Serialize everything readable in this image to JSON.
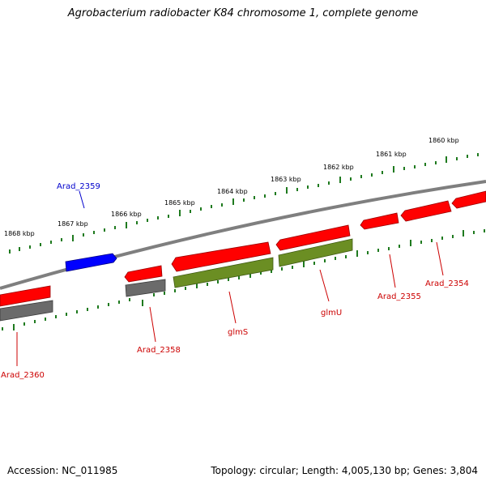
{
  "title": "Agrobacterium radiobacter K84 chromosome 1, complete genome",
  "footer": {
    "accession_text": "Accession: NC_011985",
    "topology_text": "Topology: circular; Length: 4,005,130 bp; Genes: 3,804"
  },
  "colors": {
    "backbone": "#7f7f7f",
    "tick": "#1f7a1f",
    "gene_red": "#ff0000",
    "gene_blue": "#0000ff",
    "gene_gray": "#6b6b6b",
    "gene_olive": "#6b8e23",
    "label_red": "#cc0000",
    "label_blue": "#0000cc"
  },
  "scale": {
    "kbp_labels": [
      "1860 kbp",
      "1861 kbp",
      "1862 kbp",
      "1863 kbp",
      "1864 kbp",
      "1865 kbp",
      "1866 kbp",
      "1867 kbp",
      "1868 kbp"
    ]
  },
  "genes": [
    {
      "name": "Arad_2359",
      "strand": "forward",
      "color_key": "gene_blue"
    },
    {
      "name": "Arad_2360",
      "strand": "reverse",
      "color_key": "gene_red"
    },
    {
      "name": "Arad_2358",
      "strand": "reverse",
      "color_key": "gene_red"
    },
    {
      "name": "glmS",
      "strand": "reverse",
      "color_key": "gene_red"
    },
    {
      "name": "glmU",
      "strand": "reverse",
      "color_key": "gene_red"
    },
    {
      "name": "Arad_2355",
      "strand": "reverse",
      "color_key": "gene_red"
    },
    {
      "name": "Arad_2354",
      "strand": "reverse",
      "color_key": "gene_red"
    }
  ]
}
